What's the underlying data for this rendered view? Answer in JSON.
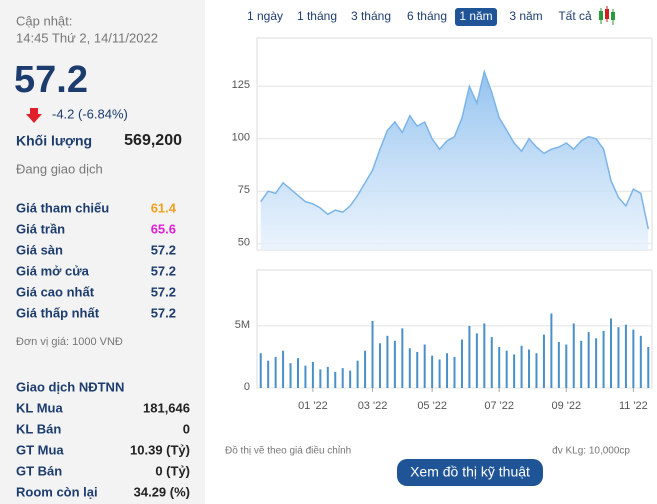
{
  "header": {
    "updated_label": "Cập nhật:",
    "updated_time": "14:45 Thứ 2, 14/11/2022",
    "price": "57.2",
    "change": "-4.2 (-6.84%)",
    "volume_label": "Khối lượng",
    "volume": "569,200",
    "status": "Đang giao dịch"
  },
  "prices": [
    [
      "Giá tham chiếu",
      "61.4"
    ],
    [
      "Giá trần",
      "65.6"
    ],
    [
      "Giá sàn",
      "57.2"
    ],
    [
      "Giá mở cửa",
      "57.2"
    ],
    [
      "Giá cao nhất",
      "57.2"
    ],
    [
      "Giá thấp nhất",
      "57.2"
    ]
  ],
  "unit": "Đơn vị giá: 1000 VNĐ",
  "foreign": {
    "title": "Giao dịch NĐTNN",
    "rows": [
      [
        "KL Mua",
        "181,646"
      ],
      [
        "KL Bán",
        "0"
      ],
      [
        "GT Mua",
        "10.39 (Tỷ)"
      ],
      [
        "GT Bán",
        "0 (Tỷ)"
      ],
      [
        "Room còn lại",
        "34.29 (%)"
      ]
    ]
  },
  "ranges": [
    "1 ngày",
    "1 tháng",
    "3 tháng",
    "6 tháng",
    "1 năm",
    "3 năm",
    "Tất cả"
  ],
  "notes": {
    "adjusted": "Đồ thị vẽ theo giá điều chỉnh",
    "volume_unit": "đv KLg: 10,000cp"
  },
  "button": "Xem đồ thị kỹ thuật",
  "chart_data": [
    {
      "type": "area",
      "color": "#7cb4e8",
      "ylim": [
        47,
        148
      ],
      "yticks": [
        50,
        75,
        100,
        125
      ],
      "grid": true,
      "categories": [
        null,
        null,
        null,
        null,
        null,
        null,
        null,
        null,
        null,
        null,
        null,
        null,
        null,
        null,
        null,
        null,
        null,
        null,
        null,
        null,
        null,
        null,
        null,
        null,
        null,
        null,
        null,
        null,
        null,
        null,
        null,
        null,
        null,
        null,
        null,
        null,
        null,
        null,
        null,
        null,
        null,
        null,
        null,
        null,
        null,
        null,
        null,
        null,
        null,
        null,
        null,
        null,
        null
      ],
      "values": [
        70,
        75,
        74,
        79,
        76,
        73,
        70,
        69,
        67,
        64,
        66,
        65,
        68,
        73,
        79,
        85,
        95,
        104,
        108,
        103,
        111,
        106,
        108,
        100,
        95,
        99,
        101,
        110,
        125,
        117,
        132,
        122,
        110,
        104,
        98,
        94,
        100,
        96,
        93,
        95,
        96,
        98,
        95,
        99,
        101,
        100,
        95,
        80,
        72,
        68,
        76,
        74,
        57
      ]
    },
    {
      "type": "bar",
      "color": "#4a8fc8",
      "ylim": [
        0,
        9500000
      ],
      "yticks": [
        0,
        {
          "value": 5000000,
          "label": "5M"
        }
      ],
      "grid": true,
      "categories": [
        null,
        null,
        null,
        null,
        null,
        null,
        null,
        "01 '22",
        null,
        null,
        null,
        null,
        null,
        null,
        null,
        "03 '22",
        null,
        null,
        null,
        null,
        null,
        null,
        null,
        "05 '22",
        null,
        null,
        null,
        null,
        null,
        null,
        null,
        null,
        "07 '22",
        null,
        null,
        null,
        null,
        null,
        null,
        null,
        null,
        "09 '22",
        null,
        null,
        null,
        null,
        null,
        null,
        null,
        null,
        "11 '22",
        null,
        null
      ],
      "values": [
        2800000,
        2200000,
        2500000,
        3000000,
        2000000,
        2400000,
        1800000,
        2100000,
        1500000,
        1700000,
        1300000,
        1600000,
        1400000,
        2200000,
        3000000,
        5400000,
        3600000,
        4200000,
        3800000,
        4800000,
        3200000,
        2900000,
        3500000,
        2600000,
        2300000,
        2800000,
        2500000,
        3900000,
        5000000,
        4400000,
        5200000,
        4100000,
        3300000,
        3000000,
        2700000,
        3400000,
        3100000,
        2800000,
        4300000,
        6000000,
        3700000,
        3500000,
        5200000,
        3800000,
        4500000,
        4000000,
        4600000,
        5600000,
        4900000,
        5100000,
        4700000,
        4200000,
        3300000
      ]
    }
  ]
}
